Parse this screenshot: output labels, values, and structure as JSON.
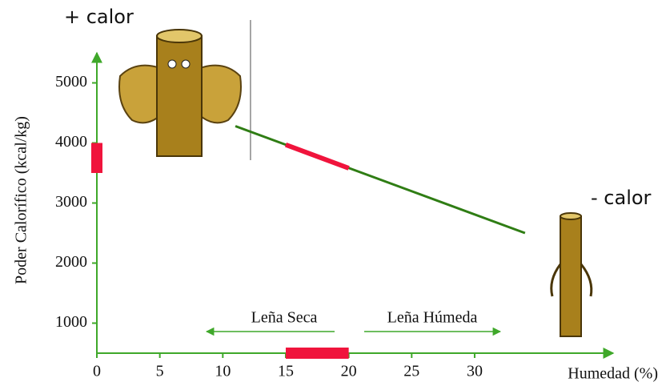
{
  "chart_data": {
    "type": "line",
    "y_label": "Poder Calorífico (kcal/kg)",
    "x_label": "Humedad (%)",
    "annotations": [
      "+ calor",
      "- calor",
      "Leña Seca",
      "Leña Húmeda"
    ],
    "xlim": [
      0,
      41
    ],
    "ylim": [
      500,
      5500
    ],
    "xticks": [
      0,
      5,
      10,
      15,
      20,
      25,
      30
    ],
    "yticks": [
      1000,
      2000,
      3000,
      4000,
      5000
    ],
    "series": [
      {
        "color": "#2f7d14",
        "x": [
          11,
          34
        ],
        "values": [
          4280,
          2500
        ]
      },
      {
        "color": "#f0143c",
        "x": [
          15,
          20
        ],
        "values": [
          3970,
          3580
        ]
      }
    ],
    "x_band": [
      15,
      20
    ],
    "y_band": [
      3500,
      4000
    ],
    "band_color": "#f0143c",
    "vline": 12.2,
    "axis_color": "#3fa82a"
  }
}
